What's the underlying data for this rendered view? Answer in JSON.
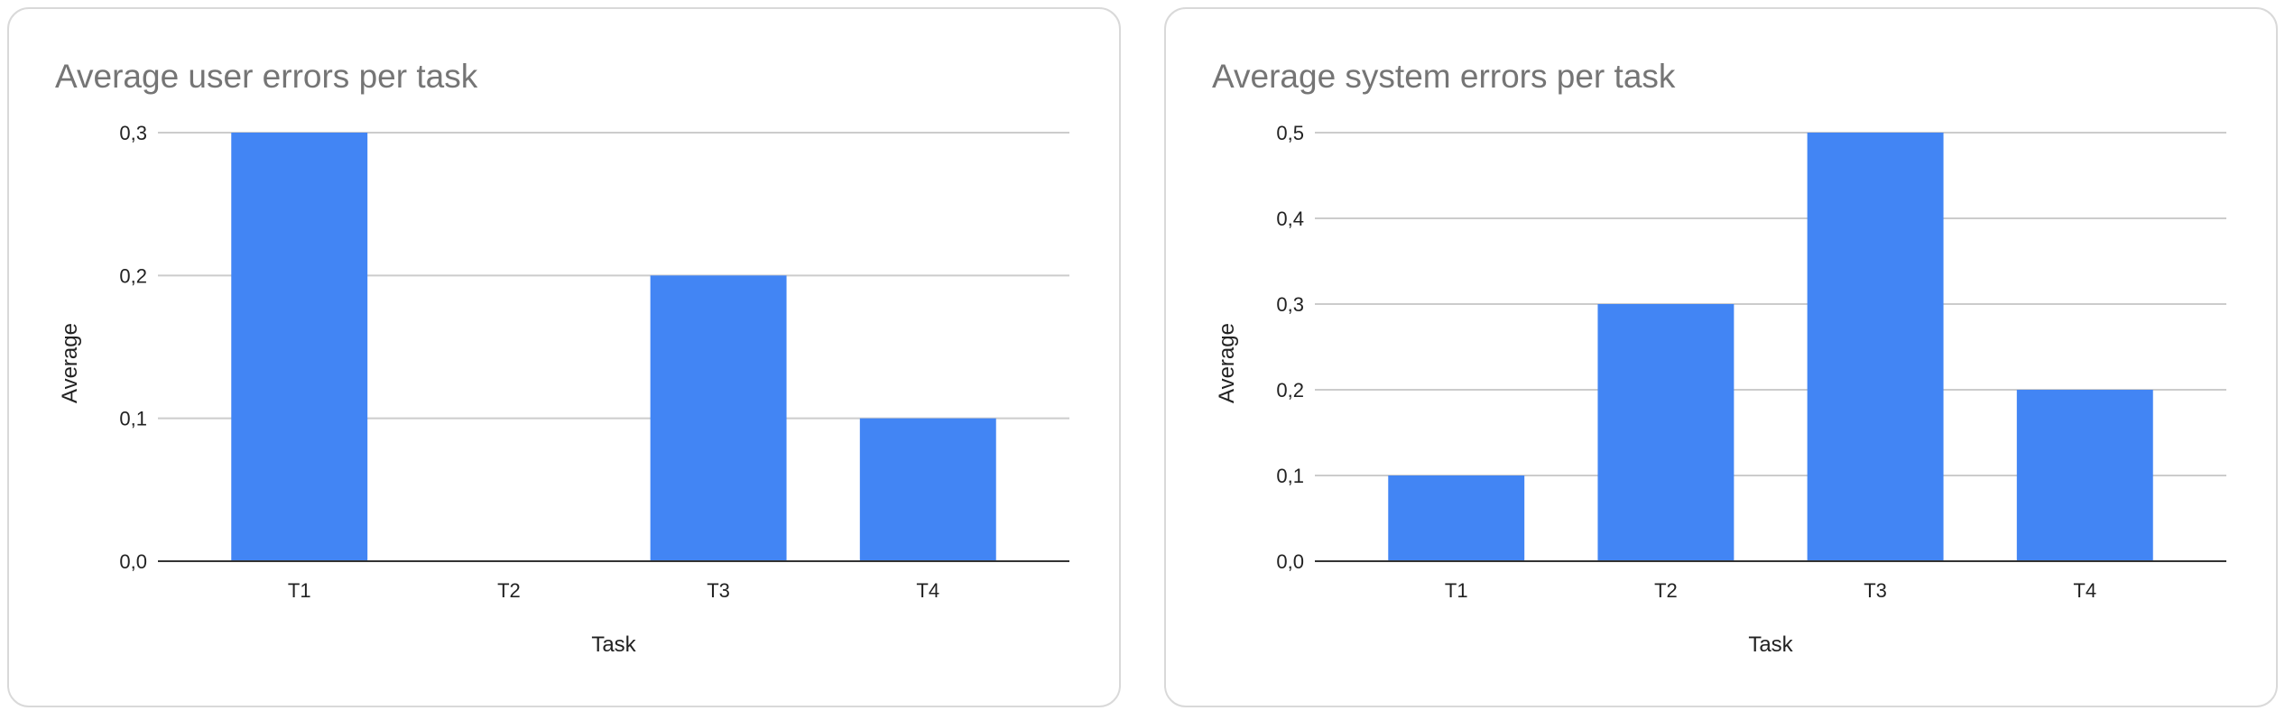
{
  "chart_data": [
    {
      "type": "bar",
      "title": "Average user errors per task",
      "xlabel": "Task",
      "ylabel": "Average",
      "categories": [
        "T1",
        "T2",
        "T3",
        "T4"
      ],
      "values": [
        0.3,
        0,
        0.2,
        0.1
      ],
      "ylim": [
        0,
        0.3
      ],
      "yticks": [
        0,
        0.1,
        0.2,
        0.3
      ],
      "ytick_labels": [
        "0,0",
        "0,1",
        "0,2",
        "0,3"
      ],
      "grid": true,
      "legend": "none",
      "bar_color": "#4285f4"
    },
    {
      "type": "bar",
      "title": "Average system errors per task",
      "xlabel": "Task",
      "ylabel": "Average",
      "categories": [
        "T1",
        "T2",
        "T3",
        "T4"
      ],
      "values": [
        0.1,
        0.3,
        0.5,
        0.2
      ],
      "ylim": [
        0,
        0.5
      ],
      "yticks": [
        0,
        0.1,
        0.2,
        0.3,
        0.4,
        0.5
      ],
      "ytick_labels": [
        "0,0",
        "0,1",
        "0,2",
        "0,3",
        "0,4",
        "0,5"
      ],
      "grid": true,
      "legend": "none",
      "bar_color": "#4285f4"
    }
  ]
}
